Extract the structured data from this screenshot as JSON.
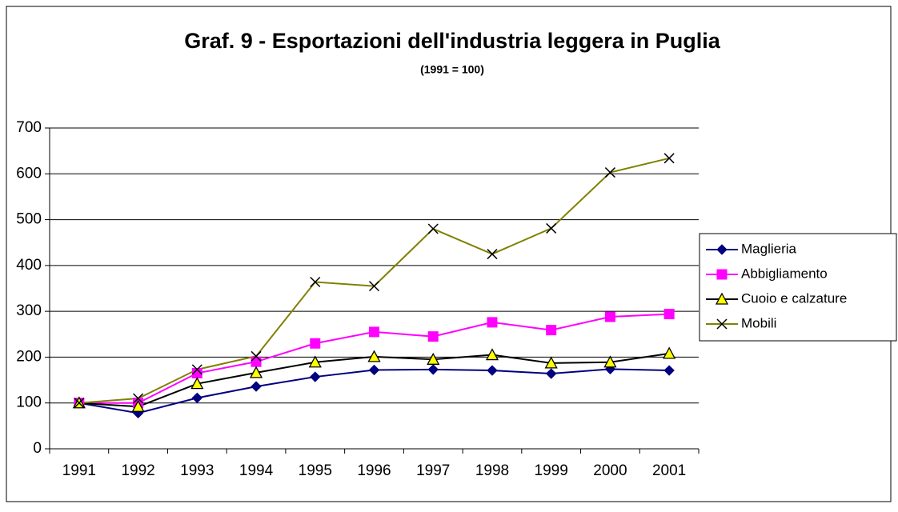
{
  "chart_data": {
    "type": "line",
    "title": "Graf. 9 - Esportazioni dell'industria leggera in Puglia",
    "subtitle": "(1991 = 100)",
    "categories": [
      "1991",
      "1992",
      "1993",
      "1994",
      "1995",
      "1996",
      "1997",
      "1998",
      "1999",
      "2000",
      "2001"
    ],
    "series": [
      {
        "name": "Maglieria",
        "color": "#000080",
        "marker": "diamond",
        "values": [
          100,
          78,
          111,
          136,
          157,
          172,
          173,
          171,
          164,
          174,
          171
        ]
      },
      {
        "name": "Abbigliamento",
        "color": "#ff00ff",
        "marker": "square",
        "values": [
          100,
          100,
          165,
          190,
          230,
          255,
          245,
          276,
          259,
          288,
          294
        ]
      },
      {
        "name": "Cuoio e calzature",
        "color": "#000000",
        "marker": "triangle",
        "values": [
          100,
          92,
          142,
          166,
          189,
          201,
          195,
          205,
          187,
          189,
          208
        ]
      },
      {
        "name": "Mobili",
        "color": "#808000",
        "marker": "x",
        "values": [
          100,
          110,
          173,
          202,
          364,
          355,
          480,
          425,
          481,
          603,
          634
        ]
      }
    ],
    "ylim": [
      0,
      700
    ],
    "yticks": [
      0,
      100,
      200,
      300,
      400,
      500,
      600,
      700
    ],
    "grid": true,
    "legend": "right"
  }
}
